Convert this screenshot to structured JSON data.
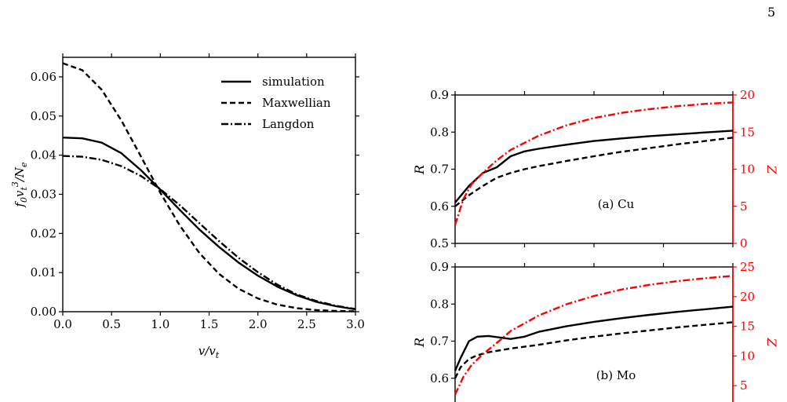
{
  "page": {
    "number": "5"
  },
  "chart_data": [
    {
      "type": "line",
      "title": "",
      "xlabel": "v/v_t",
      "ylabel": "f_0 v_t^3/N_e",
      "xlim": [
        0,
        3
      ],
      "ylim": [
        0,
        0.065
      ],
      "xticks": [
        "0.0",
        "0.5",
        "1.0",
        "1.5",
        "2.0",
        "2.5",
        "3.0"
      ],
      "yticks": [
        "0.00",
        "0.01",
        "0.02",
        "0.03",
        "0.04",
        "0.05",
        "0.06"
      ],
      "grid": false,
      "legend": "top-right",
      "series": [
        {
          "name": "simulation",
          "style": "solid",
          "color": "#000000",
          "x": [
            0,
            0.2,
            0.4,
            0.6,
            0.8,
            1.0,
            1.2,
            1.4,
            1.6,
            1.8,
            2.0,
            2.2,
            2.4,
            2.6,
            2.8,
            3.0
          ],
          "y": [
            0.0445,
            0.0443,
            0.0432,
            0.0405,
            0.0362,
            0.0312,
            0.026,
            0.021,
            0.0166,
            0.0126,
            0.0092,
            0.0064,
            0.0042,
            0.0025,
            0.0014,
            0.0006
          ]
        },
        {
          "name": "Maxwellian",
          "style": "dashed",
          "color": "#000000",
          "x": [
            0,
            0.2,
            0.4,
            0.6,
            0.8,
            1.0,
            1.2,
            1.4,
            1.6,
            1.8,
            2.0,
            2.2,
            2.4,
            2.6,
            2.8,
            3.0
          ],
          "y": [
            0.0635,
            0.0617,
            0.0567,
            0.0489,
            0.0397,
            0.0304,
            0.022,
            0.015,
            0.0097,
            0.0059,
            0.0034,
            0.0018,
            0.0009,
            0.0004,
            0.0002,
            0.0001
          ]
        },
        {
          "name": "Langdon",
          "style": "dashdot",
          "color": "#000000",
          "x": [
            0,
            0.2,
            0.4,
            0.6,
            0.8,
            1.0,
            1.2,
            1.4,
            1.6,
            1.8,
            2.0,
            2.2,
            2.4,
            2.6,
            2.8,
            3.0
          ],
          "y": [
            0.0398,
            0.0396,
            0.0388,
            0.0372,
            0.0347,
            0.0313,
            0.0272,
            0.0226,
            0.0181,
            0.0138,
            0.0101,
            0.0069,
            0.0044,
            0.0027,
            0.0015,
            0.0007
          ]
        }
      ]
    },
    {
      "type": "line",
      "title": "",
      "annotation": "(a) Cu",
      "ylabel": "R",
      "ylabel_right": "Z",
      "ylim": [
        0.5,
        0.9
      ],
      "ylim_right": [
        0,
        20
      ],
      "yticks": [
        "0.5",
        "0.6",
        "0.7",
        "0.8",
        "0.9"
      ],
      "yticks_right": [
        "0",
        "5",
        "10",
        "15",
        "20"
      ],
      "xlim": [
        0,
        1
      ],
      "right_axis_color": "#ff0000",
      "series": [
        {
          "style": "solid",
          "color": "#000000",
          "axis": "left",
          "x": [
            0,
            0.05,
            0.1,
            0.15,
            0.2,
            0.25,
            0.3,
            0.4,
            0.5,
            0.6,
            0.7,
            0.8,
            0.9,
            1.0
          ],
          "y": [
            0.61,
            0.655,
            0.69,
            0.705,
            0.735,
            0.748,
            0.755,
            0.766,
            0.776,
            0.783,
            0.789,
            0.794,
            0.799,
            0.804
          ]
        },
        {
          "style": "dashed",
          "color": "#000000",
          "axis": "left",
          "x": [
            0,
            0.05,
            0.1,
            0.15,
            0.2,
            0.25,
            0.3,
            0.4,
            0.5,
            0.6,
            0.7,
            0.8,
            0.9,
            1.0
          ],
          "y": [
            0.6,
            0.63,
            0.655,
            0.677,
            0.69,
            0.7,
            0.708,
            0.722,
            0.735,
            0.747,
            0.757,
            0.767,
            0.776,
            0.785
          ]
        },
        {
          "style": "dashdot",
          "color": "#ff0000",
          "axis": "right",
          "x": [
            0,
            0.03,
            0.06,
            0.1,
            0.15,
            0.2,
            0.3,
            0.4,
            0.5,
            0.6,
            0.7,
            0.8,
            0.9,
            1.0
          ],
          "y": [
            2.5,
            6,
            8,
            9.5,
            11.2,
            12.6,
            14.5,
            15.9,
            16.9,
            17.6,
            18.1,
            18.5,
            18.8,
            19.0
          ]
        }
      ]
    },
    {
      "type": "line",
      "title": "",
      "annotation": "(b) Mo",
      "ylabel": "R",
      "ylabel_right": "Z",
      "ylim": [
        0.5,
        0.9
      ],
      "ylim_right": [
        0,
        25
      ],
      "yticks": [
        "0.6",
        "0.7",
        "0.8",
        "0.9"
      ],
      "yticks_right": [
        "5",
        "10",
        "15",
        "20",
        "25"
      ],
      "xlim": [
        0,
        1
      ],
      "right_axis_color": "#ff0000",
      "series": [
        {
          "style": "solid",
          "color": "#000000",
          "axis": "left",
          "x": [
            0,
            0.02,
            0.05,
            0.08,
            0.12,
            0.16,
            0.2,
            0.25,
            0.3,
            0.4,
            0.5,
            0.6,
            0.7,
            0.8,
            0.9,
            1.0
          ],
          "y": [
            0.62,
            0.655,
            0.7,
            0.712,
            0.714,
            0.71,
            0.706,
            0.712,
            0.725,
            0.74,
            0.752,
            0.762,
            0.771,
            0.779,
            0.786,
            0.793
          ]
        },
        {
          "style": "dashed",
          "color": "#000000",
          "axis": "left",
          "x": [
            0,
            0.02,
            0.05,
            0.08,
            0.12,
            0.16,
            0.2,
            0.3,
            0.4,
            0.5,
            0.6,
            0.7,
            0.8,
            0.9,
            1.0
          ],
          "y": [
            0.6,
            0.63,
            0.652,
            0.662,
            0.67,
            0.675,
            0.68,
            0.69,
            0.702,
            0.712,
            0.721,
            0.729,
            0.737,
            0.744,
            0.751
          ]
        },
        {
          "style": "dashdot",
          "color": "#ff0000",
          "axis": "right",
          "x": [
            0,
            0.03,
            0.06,
            0.1,
            0.15,
            0.2,
            0.3,
            0.4,
            0.5,
            0.6,
            0.7,
            0.8,
            0.9,
            1.0
          ],
          "y": [
            3.5,
            6.5,
            8.5,
            10.3,
            12.2,
            14.2,
            16.8,
            18.7,
            20.1,
            21.2,
            22.0,
            22.6,
            23.1,
            23.5
          ]
        }
      ]
    }
  ]
}
